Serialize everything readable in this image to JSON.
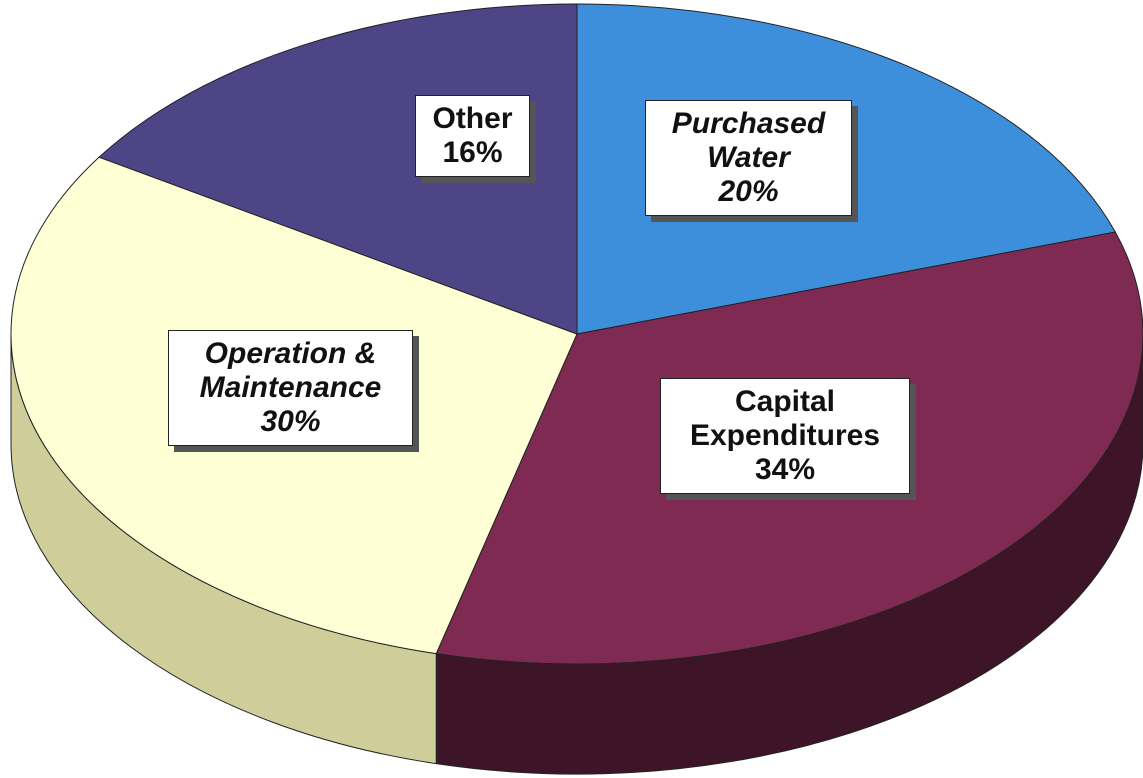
{
  "chart_data": {
    "type": "pie3d",
    "categories": [
      "Purchased Water",
      "Capital Expenditures",
      "Operation & Maintenance",
      "Other"
    ],
    "values": [
      20,
      34,
      30,
      16
    ],
    "value_labels": [
      "20%",
      "34%",
      "30%",
      "16%"
    ],
    "colors": [
      "#3d8fdc",
      "#7e2a52",
      "#ffffd6",
      "#4e4586"
    ],
    "side_colors": [
      "#2a64a0",
      "#3e1528",
      "#cfcd9a",
      "#2f2858"
    ],
    "label_italic": [
      true,
      false,
      true,
      false
    ]
  }
}
